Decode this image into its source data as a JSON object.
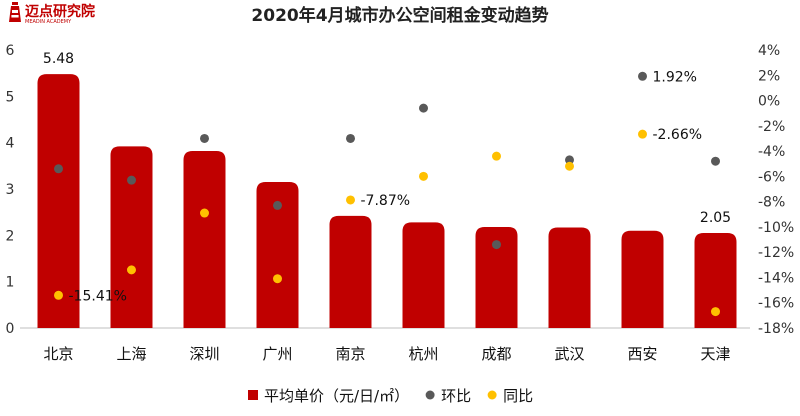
{
  "logo": {
    "name": "迈点研究院",
    "subtitle": "MEADIN ACADEMY"
  },
  "chart_data": {
    "type": "bar",
    "title": "2020年4月城市办公空间租金变动趋势",
    "categories": [
      "北京",
      "上海",
      "深圳",
      "广州",
      "南京",
      "杭州",
      "成都",
      "武汉",
      "西安",
      "天津"
    ],
    "series": [
      {
        "name": "平均单价（元/日/㎡）",
        "axis": "left",
        "kind": "bar",
        "color": "#c00000",
        "values": [
          5.48,
          3.92,
          3.82,
          3.15,
          2.42,
          2.28,
          2.18,
          2.17,
          2.1,
          2.05
        ]
      },
      {
        "name": "环比",
        "axis": "right",
        "kind": "scatter",
        "color": "#595959",
        "values": [
          -5.4,
          -6.3,
          -3.0,
          -8.3,
          -3.0,
          -0.6,
          -11.4,
          -4.7,
          1.92,
          -4.8
        ]
      },
      {
        "name": "同比",
        "axis": "right",
        "kind": "scatter",
        "color": "#ffc000",
        "values": [
          -15.41,
          -13.4,
          -8.9,
          -14.1,
          -7.87,
          -6.0,
          -4.4,
          -5.2,
          -2.66,
          -16.7
        ]
      }
    ],
    "y_left": {
      "ylim": [
        0,
        6
      ],
      "ticks": [
        "0",
        "1",
        "2",
        "3",
        "4",
        "5",
        "6"
      ]
    },
    "y_right": {
      "ylim": [
        -18,
        4
      ],
      "ticks": [
        "4%",
        "2%",
        "0%",
        "-2%",
        "-4%",
        "-6%",
        "-8%",
        "-10%",
        "-12%",
        "-14%",
        "-16%",
        "-18%"
      ]
    },
    "data_labels": [
      {
        "series": 0,
        "index": 0,
        "text": "5.48"
      },
      {
        "series": 0,
        "index": 9,
        "text": "2.05"
      },
      {
        "series": 2,
        "index": 0,
        "text": "-15.41%"
      },
      {
        "series": 2,
        "index": 4,
        "text": "-7.87%"
      },
      {
        "series": 1,
        "index": 8,
        "text": "1.92%"
      },
      {
        "series": 2,
        "index": 8,
        "text": "-2.66%"
      }
    ],
    "legend": {
      "position": "bottom"
    },
    "grid": false
  }
}
